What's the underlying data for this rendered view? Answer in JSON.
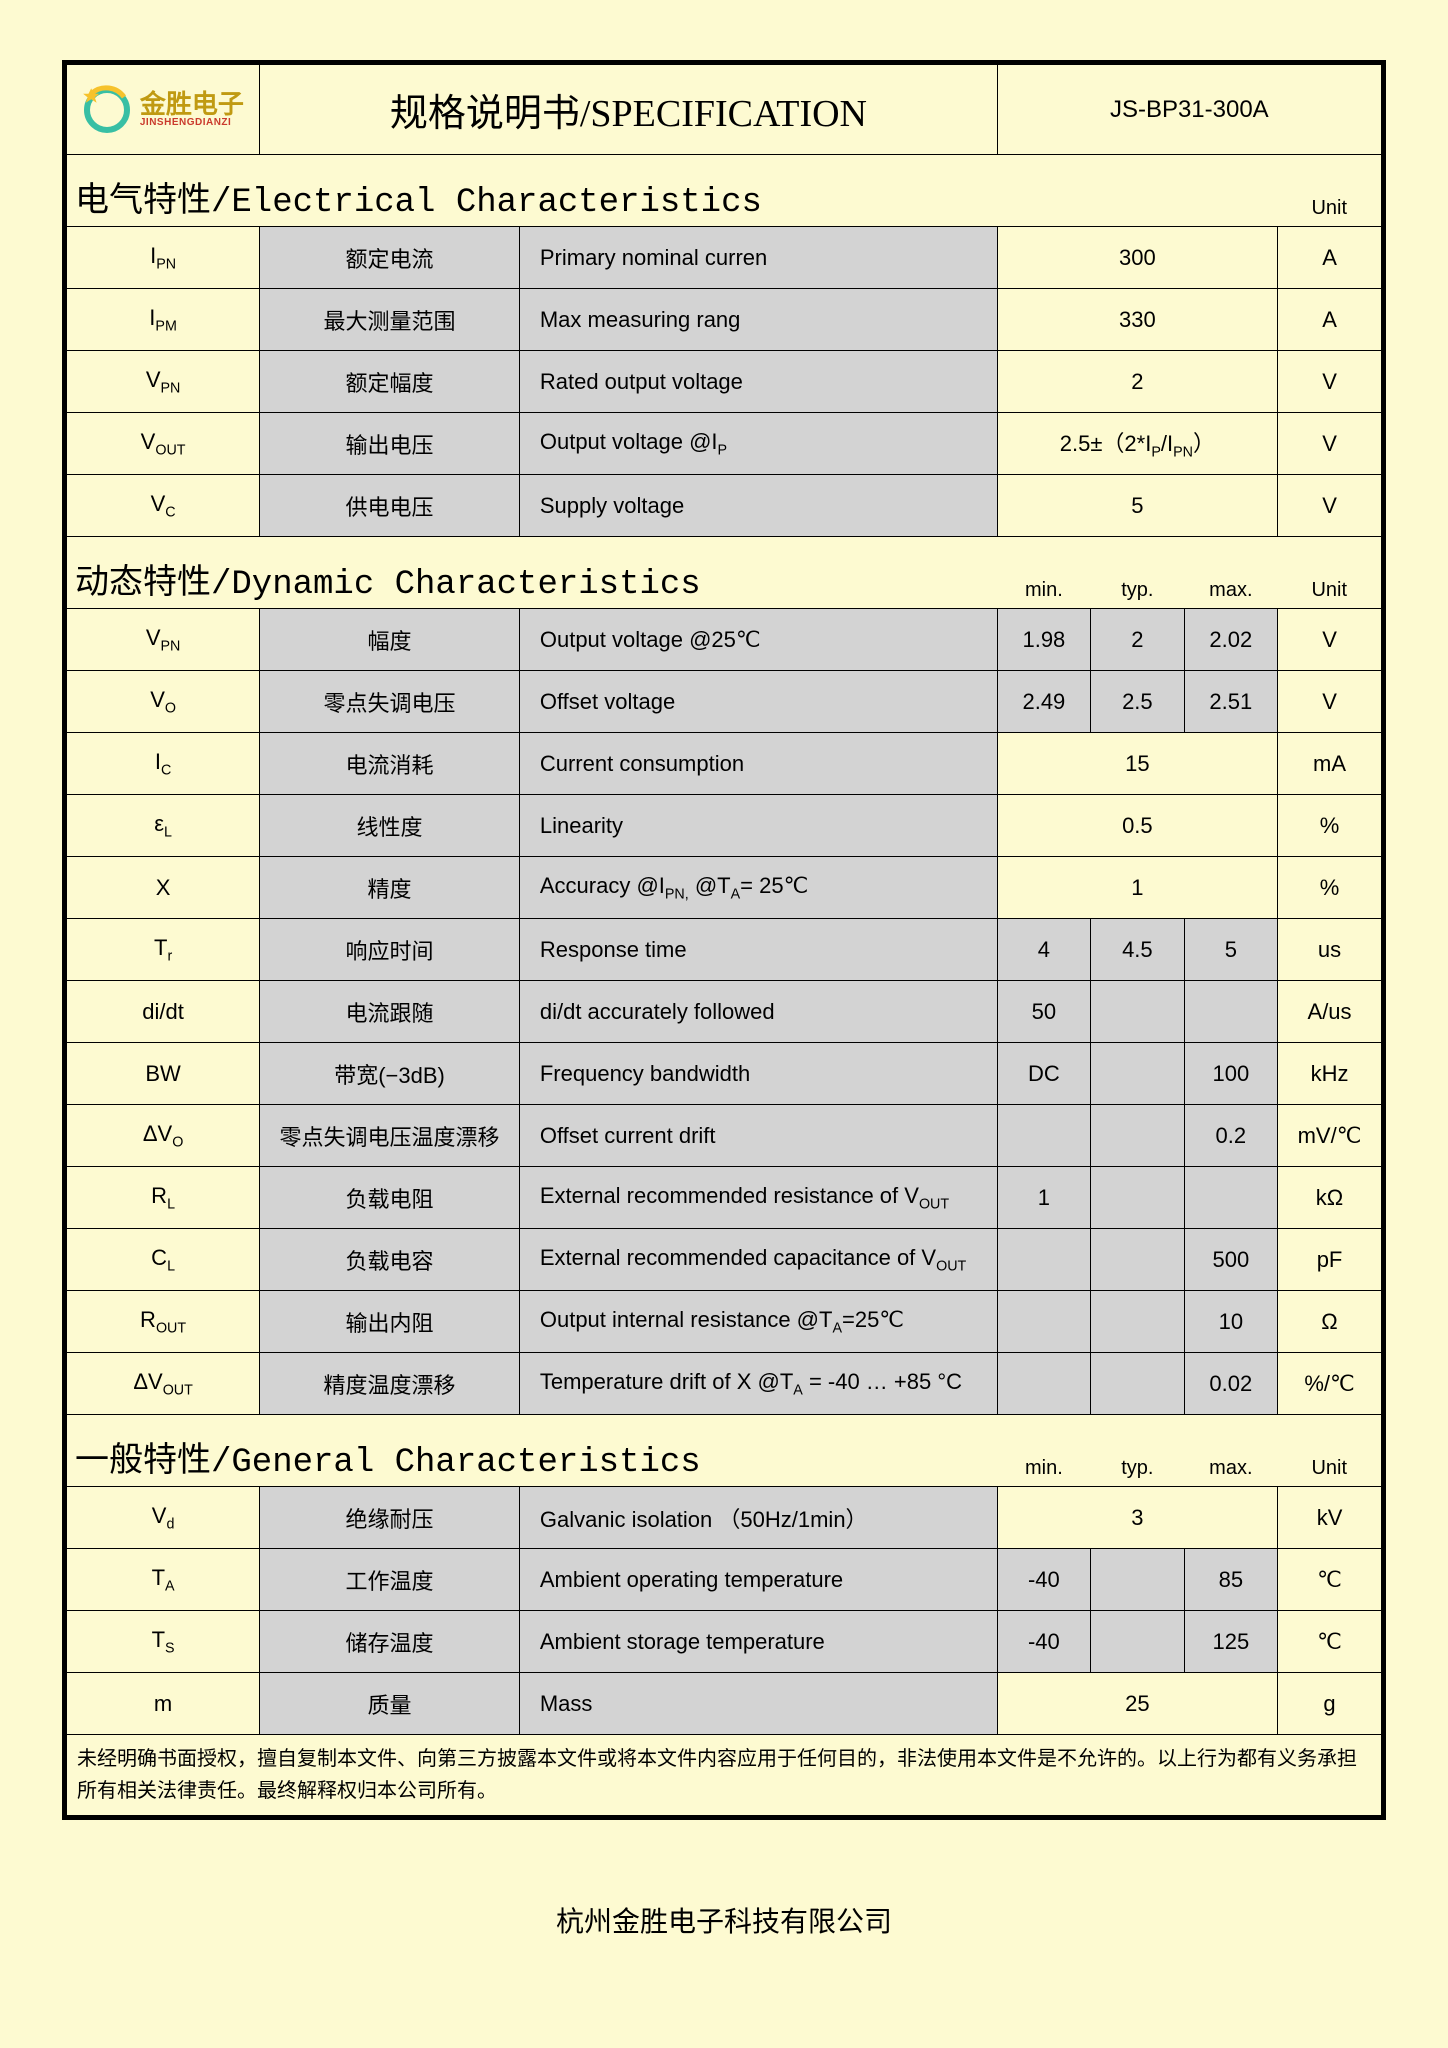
{
  "header": {
    "logo_cn": "金胜电子",
    "logo_en": "JINSHENGDIANZI",
    "title": "规格说明书/SPECIFICATION",
    "model": "JS-BP31-300A"
  },
  "logo_colors": {
    "ring": "#38bfa4",
    "arc": "#f6c22b",
    "star": "#f6c22b",
    "text_accent": "#c09a12"
  },
  "sections": {
    "electrical": {
      "label": "电气特性/Electrical Characteristics",
      "unit_hdr": "Unit"
    },
    "dynamic": {
      "label": "动态特性/Dynamic Characteristics",
      "min": "min.",
      "typ": "typ.",
      "max": "max.",
      "unit": "Unit"
    },
    "general": {
      "label": "一般特性/General Characteristics",
      "min": "min.",
      "typ": "typ.",
      "max": "max.",
      "unit": "Unit"
    }
  },
  "elec": [
    {
      "sym": "I<sub>PN</sub>",
      "cn": "额定电流",
      "en": "Primary nominal  curren",
      "val": "300",
      "unit": "A"
    },
    {
      "sym": "I<sub>PM</sub>",
      "cn": "最大测量范围",
      "en": "Max measuring rang",
      "val": "330",
      "unit": "A"
    },
    {
      "sym": "V<sub>PN</sub>",
      "cn": "额定幅度",
      "en": "Rated output voltage",
      "val": "2",
      "unit": "V"
    },
    {
      "sym": "V<sub>OUT</sub>",
      "cn": "输出电压",
      "en": "Output voltage @I<sub>P</sub>",
      "val": "2.5±（2*I<sub>P</sub>/I<sub>PN</sub>）",
      "unit": "V"
    },
    {
      "sym": "V<sub>C</sub>",
      "cn": "供电电压",
      "en": "Supply voltage",
      "val": "5",
      "unit": "V"
    }
  ],
  "dyn": [
    {
      "sym": "V<sub>PN</sub>",
      "cn": "幅度",
      "en": "Output voltage @25℃",
      "min": "1.98",
      "typ": "2",
      "max": "2.02",
      "unit": "V"
    },
    {
      "sym": "V<sub>O</sub>",
      "cn": "零点失调电压",
      "en": "Offset voltage",
      "min": "2.49",
      "typ": "2.5",
      "max": "2.51",
      "unit": "V"
    },
    {
      "sym": "I<sub>C</sub>",
      "cn": "电流消耗",
      "en": "Current consumption",
      "min": "",
      "typ": "15",
      "max": "",
      "unit": "mA",
      "merge": "typ"
    },
    {
      "sym": "ε<sub>L</sub>",
      "cn": "线性度",
      "en": "Linearity",
      "min": "",
      "typ": "0.5",
      "max": "",
      "unit": "%",
      "merge": "typ"
    },
    {
      "sym": "X",
      "cn": "精度",
      "en": "Accuracy @I<sub>PN,</sub> @T<sub>A</sub>= 25℃",
      "min": "",
      "typ": "1",
      "max": "",
      "unit": "%",
      "merge": "typ"
    },
    {
      "sym": "T<sub>r</sub>",
      "cn": "响应时间",
      "en": "Response time",
      "min": "4",
      "typ": "4.5",
      "max": "5",
      "unit": "us"
    },
    {
      "sym": "di/dt",
      "cn": "电流跟随",
      "en": "di/dt accurately followed",
      "min": "50",
      "typ": "",
      "max": "",
      "unit": "A/us"
    },
    {
      "sym": "BW",
      "cn": "带宽(−3dB)",
      "en": "Frequency bandwidth",
      "min": "DC",
      "typ": "",
      "max": "100",
      "unit": "kHz"
    },
    {
      "sym": "ΔV<sub>O</sub>",
      "cn": "零点失调电压温度漂移",
      "en": "Offset current drift",
      "min": "",
      "typ": "",
      "max": "0.2",
      "unit": "mV/℃"
    },
    {
      "sym": "R<sub>L</sub>",
      "cn": "负载电阻",
      "en": "External recommended resistance of V<sub>OUT</sub>",
      "min": "1",
      "typ": "",
      "max": "",
      "unit": "kΩ"
    },
    {
      "sym": "C<sub>L</sub>",
      "cn": "负载电容",
      "en": "External recommended capacitance of V<sub>OUT</sub>",
      "min": "",
      "typ": "",
      "max": "500",
      "unit": "pF"
    },
    {
      "sym": "R<sub>OUT</sub>",
      "cn": "输出内阻",
      "en": "Output internal resistance @T<sub>A</sub>=25℃",
      "min": "",
      "typ": "",
      "max": "10",
      "unit": "Ω"
    },
    {
      "sym": "ΔV<sub>OUT</sub>",
      "cn": "精度温度漂移",
      "en": "Temperature drift of X @T<sub>A</sub> = -40 … +85 °C",
      "min": "",
      "typ": "",
      "max": "0.02",
      "unit": "%/℃"
    }
  ],
  "gen": [
    {
      "sym": "V<sub>d</sub>",
      "cn": "绝缘耐压",
      "en": "Galvanic isolation （50Hz/1min）",
      "min": "",
      "typ": "3",
      "max": "",
      "unit": "kV",
      "merge": "typ"
    },
    {
      "sym": "T<sub>A</sub>",
      "cn": "工作温度",
      "en": "Ambient operating temperature",
      "min": "-40",
      "typ": "",
      "max": "85",
      "unit": "℃"
    },
    {
      "sym": "T<sub>S</sub>",
      "cn": "储存温度",
      "en": "Ambient storage temperature",
      "min": "-40",
      "typ": "",
      "max": "125",
      "unit": "℃"
    },
    {
      "sym": "m",
      "cn": "质量",
      "en": "Mass",
      "min": "",
      "typ": "25",
      "max": "",
      "unit": "g",
      "merge": "typ"
    }
  ],
  "footer": "未经明确书面授权，擅自复制本文件、向第三方披露本文件或将本文件内容应用于任何目的，非法使用本文件是不允许的。以上行为都有义务承担所有相关法律责任。最终解释权归本公司所有。",
  "company": "杭州金胜电子科技有限公司",
  "cols": {
    "sym": 140,
    "cn": 250,
    "en": 460,
    "min": 90,
    "typ": 90,
    "max": 90,
    "unit": 100
  }
}
